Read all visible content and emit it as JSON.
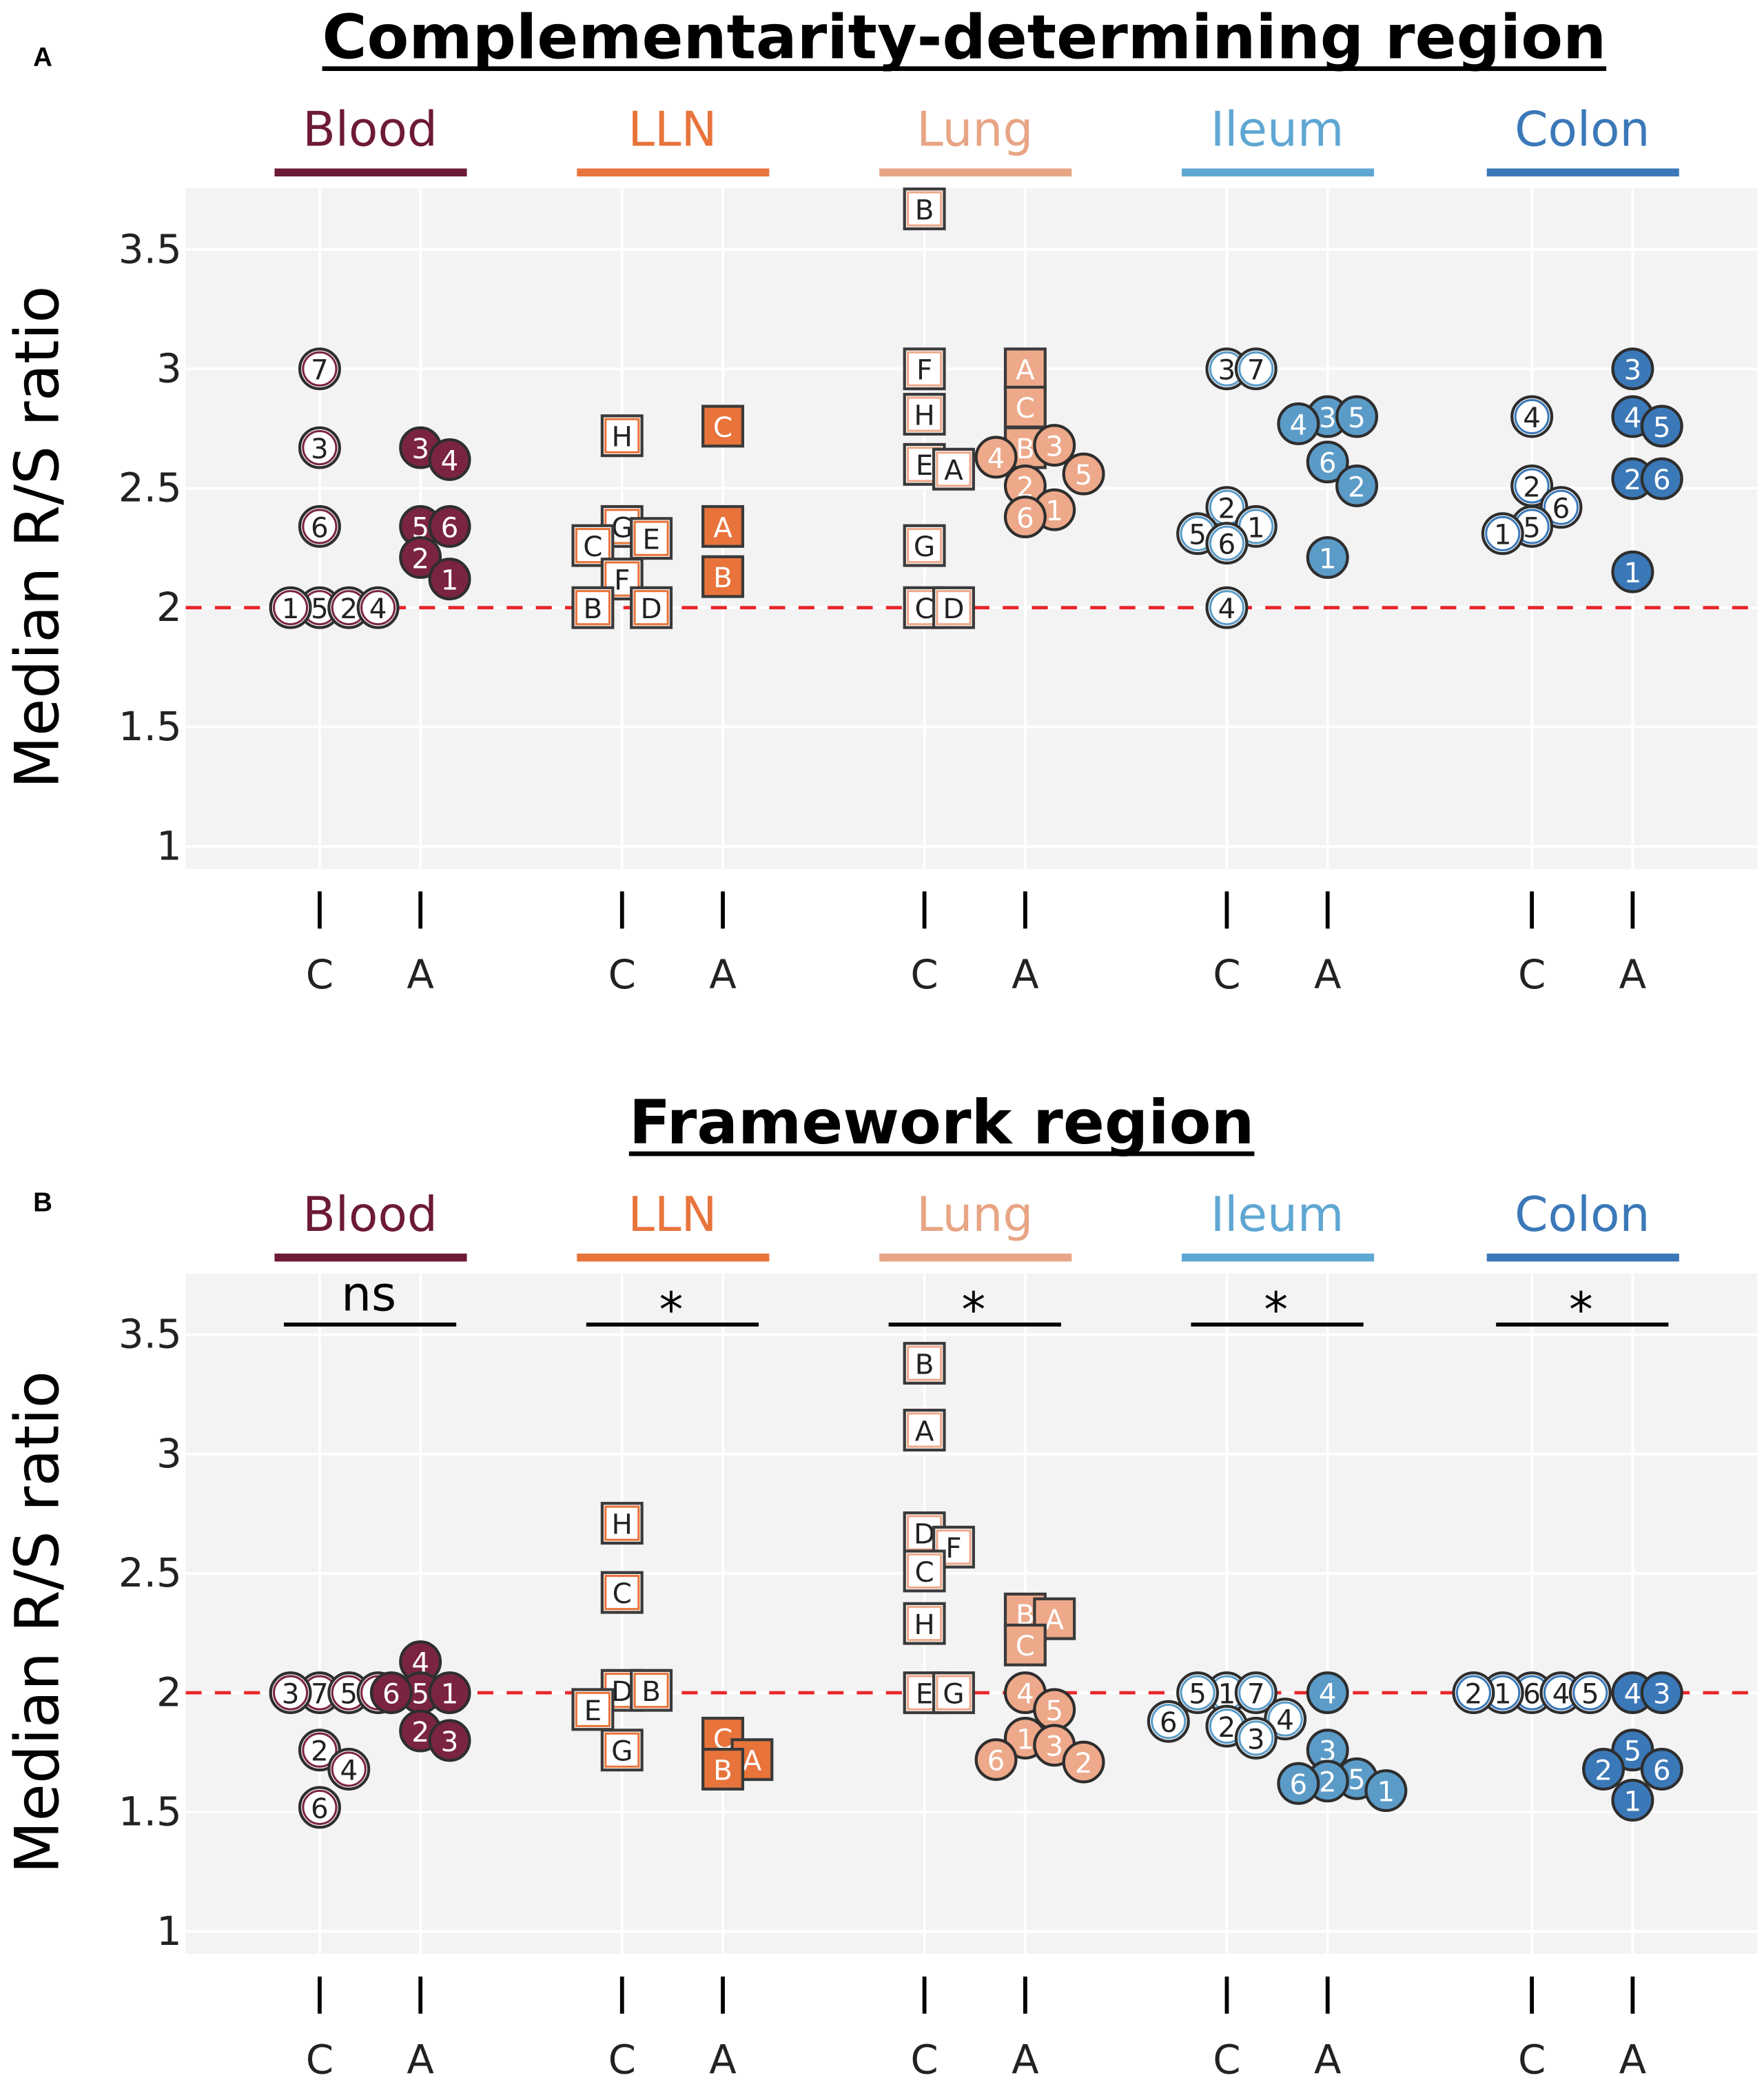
{
  "chart_data": [
    {
      "panel_label": "A",
      "type": "scatter",
      "title": "Complementarity-determining region",
      "ylabel": "Median R/S ratio",
      "ylim": [
        0.906,
        3.756
      ],
      "yticks": [
        1,
        1.5,
        2,
        2.5,
        3,
        3.5
      ],
      "ytick_labels": [
        "1",
        "1.5",
        "2",
        "2.5",
        "3",
        "3.5"
      ],
      "reference_line": 2,
      "reference_color": "#e8262a",
      "x_tick_labels": [
        "C",
        "A"
      ],
      "tissues": [
        {
          "name": "Blood",
          "color": "#6d1a36",
          "fill": "#7b2440",
          "significance": null,
          "groups": [
            {
              "condition": "C",
              "points": [
                {
                  "label": "7",
                  "value": 3.0
                },
                {
                  "label": "3",
                  "value": 2.67
                },
                {
                  "label": "6",
                  "value": 2.34
                },
                {
                  "label": "5",
                  "value": 2.0
                },
                {
                  "label": "2",
                  "value": 2.0
                },
                {
                  "label": "1",
                  "value": 2.0
                },
                {
                  "label": "4",
                  "value": 2.0
                }
              ]
            },
            {
              "condition": "A",
              "points": [
                {
                  "label": "3",
                  "value": 2.67
                },
                {
                  "label": "4",
                  "value": 2.62
                },
                {
                  "label": "5",
                  "value": 2.34
                },
                {
                  "label": "6",
                  "value": 2.34
                },
                {
                  "label": "2",
                  "value": 2.21
                },
                {
                  "label": "1",
                  "value": 2.12
                }
              ]
            }
          ]
        },
        {
          "name": "LLN",
          "color": "#e8743b",
          "fill": "#e8743b",
          "significance": null,
          "groups": [
            {
              "condition": "C",
              "points": [
                {
                  "label": "H",
                  "value": 2.72
                },
                {
                  "label": "G",
                  "value": 2.34
                },
                {
                  "label": "E",
                  "value": 2.29
                },
                {
                  "label": "C",
                  "value": 2.26
                },
                {
                  "label": "F",
                  "value": 2.12
                },
                {
                  "label": "D",
                  "value": 2.0
                },
                {
                  "label": "B",
                  "value": 2.0
                }
              ]
            },
            {
              "condition": "A",
              "points": [
                {
                  "label": "C",
                  "value": 2.76
                },
                {
                  "label": "A",
                  "value": 2.34
                },
                {
                  "label": "B",
                  "value": 2.13
                }
              ]
            }
          ]
        },
        {
          "name": "Lung",
          "color": "#e8a585",
          "fill": "#eda98a",
          "significance": null,
          "groups": [
            {
              "condition": "C",
              "points": [
                {
                  "label": "B",
                  "value": 3.67
                },
                {
                  "label": "F",
                  "value": 3.0
                },
                {
                  "label": "H",
                  "value": 2.81
                },
                {
                  "label": "E",
                  "value": 2.6
                },
                {
                  "label": "A",
                  "value": 2.58
                },
                {
                  "label": "G",
                  "value": 2.26
                },
                {
                  "label": "C",
                  "value": 2.0
                },
                {
                  "label": "D",
                  "value": 2.0
                }
              ]
            },
            {
              "condition": "A",
              "points": [
                {
                  "label": "A",
                  "value": 3.0
                },
                {
                  "label": "C",
                  "value": 2.84
                },
                {
                  "label": "B",
                  "value": 2.67
                },
                {
                  "label": "3",
                  "value": 2.68
                },
                {
                  "label": "4",
                  "value": 2.63
                },
                {
                  "label": "5",
                  "value": 2.56
                },
                {
                  "label": "2",
                  "value": 2.51
                },
                {
                  "label": "1",
                  "value": 2.41
                },
                {
                  "label": "6",
                  "value": 2.38
                }
              ]
            }
          ]
        },
        {
          "name": "Ileum",
          "color": "#5fa7d3",
          "fill": "#5b9bc8",
          "significance": null,
          "groups": [
            {
              "condition": "C",
              "points": [
                {
                  "label": "3",
                  "value": 3.0
                },
                {
                  "label": "7",
                  "value": 3.0
                },
                {
                  "label": "2",
                  "value": 2.42
                },
                {
                  "label": "1",
                  "value": 2.34
                },
                {
                  "label": "5",
                  "value": 2.31
                },
                {
                  "label": "6",
                  "value": 2.27
                },
                {
                  "label": "4",
                  "value": 2.0
                }
              ]
            },
            {
              "condition": "A",
              "points": [
                {
                  "label": "3",
                  "value": 2.8
                },
                {
                  "label": "5",
                  "value": 2.8
                },
                {
                  "label": "4",
                  "value": 2.77
                },
                {
                  "label": "6",
                  "value": 2.61
                },
                {
                  "label": "2",
                  "value": 2.51
                },
                {
                  "label": "1",
                  "value": 2.21
                }
              ]
            }
          ]
        },
        {
          "name": "Colon",
          "color": "#3b78b8",
          "fill": "#3b78b8",
          "significance": null,
          "groups": [
            {
              "condition": "C",
              "points": [
                {
                  "label": "4",
                  "value": 2.8
                },
                {
                  "label": "2",
                  "value": 2.51
                },
                {
                  "label": "6",
                  "value": 2.42
                },
                {
                  "label": "5",
                  "value": 2.34
                },
                {
                  "label": "1",
                  "value": 2.31
                }
              ]
            },
            {
              "condition": "A",
              "points": [
                {
                  "label": "3",
                  "value": 3.0
                },
                {
                  "label": "4",
                  "value": 2.8
                },
                {
                  "label": "5",
                  "value": 2.76
                },
                {
                  "label": "2",
                  "value": 2.54
                },
                {
                  "label": "6",
                  "value": 2.54
                },
                {
                  "label": "1",
                  "value": 2.15
                }
              ]
            }
          ]
        }
      ]
    },
    {
      "panel_label": "B",
      "type": "scatter",
      "title": "Framework region",
      "ylabel": "Median R/S ratio",
      "ylim": [
        0.906,
        3.756
      ],
      "yticks": [
        1,
        1.5,
        2,
        2.5,
        3,
        3.5
      ],
      "ytick_labels": [
        "1",
        "1.5",
        "2",
        "2.5",
        "3",
        "3.5"
      ],
      "reference_line": 2,
      "reference_color": "#e8262a",
      "x_tick_labels": [
        "C",
        "A"
      ],
      "tissues": [
        {
          "name": "Blood",
          "color": "#6d1a36",
          "fill": "#7b2440",
          "significance": "ns",
          "groups": [
            {
              "condition": "C",
              "points": [
                {
                  "label": "7",
                  "value": 2.0
                },
                {
                  "label": "5",
                  "value": 2.0
                },
                {
                  "label": "3",
                  "value": 2.0
                },
                {
                  "label": "1",
                  "value": 2.0
                },
                {
                  "label": "2",
                  "value": 1.76
                },
                {
                  "label": "4",
                  "value": 1.68
                },
                {
                  "label": "6",
                  "value": 1.52
                }
              ]
            },
            {
              "condition": "A",
              "points": [
                {
                  "label": "4",
                  "value": 2.13
                },
                {
                  "label": "5",
                  "value": 2.0
                },
                {
                  "label": "1",
                  "value": 2.0
                },
                {
                  "label": "6",
                  "value": 2.0
                },
                {
                  "label": "2",
                  "value": 1.84
                },
                {
                  "label": "3",
                  "value": 1.8
                }
              ]
            }
          ]
        },
        {
          "name": "LLN",
          "color": "#e8743b",
          "fill": "#e8743b",
          "significance": "*",
          "groups": [
            {
              "condition": "C",
              "points": [
                {
                  "label": "H",
                  "value": 2.71
                },
                {
                  "label": "C",
                  "value": 2.42
                },
                {
                  "label": "D",
                  "value": 2.01
                },
                {
                  "label": "B",
                  "value": 2.01
                },
                {
                  "label": "E",
                  "value": 1.93
                },
                {
                  "label": "G",
                  "value": 1.76
                }
              ]
            },
            {
              "condition": "A",
              "points": [
                {
                  "label": "C",
                  "value": 1.81
                },
                {
                  "label": "A",
                  "value": 1.72
                },
                {
                  "label": "B",
                  "value": 1.68
                }
              ]
            }
          ]
        },
        {
          "name": "Lung",
          "color": "#e8a585",
          "fill": "#eda98a",
          "significance": "*",
          "groups": [
            {
              "condition": "C",
              "points": [
                {
                  "label": "B",
                  "value": 3.38
                },
                {
                  "label": "A",
                  "value": 3.1
                },
                {
                  "label": "D",
                  "value": 2.67
                },
                {
                  "label": "F",
                  "value": 2.61
                },
                {
                  "label": "C",
                  "value": 2.51
                },
                {
                  "label": "H",
                  "value": 2.29
                },
                {
                  "label": "E",
                  "value": 2.0
                },
                {
                  "label": "G",
                  "value": 2.0
                }
              ]
            },
            {
              "condition": "A",
              "points": [
                {
                  "label": "B",
                  "value": 2.33
                },
                {
                  "label": "A",
                  "value": 2.31
                },
                {
                  "label": "C",
                  "value": 2.2
                },
                {
                  "label": "4",
                  "value": 2.0
                },
                {
                  "label": "5",
                  "value": 1.93
                },
                {
                  "label": "1",
                  "value": 1.81
                },
                {
                  "label": "3",
                  "value": 1.78
                },
                {
                  "label": "6",
                  "value": 1.72
                },
                {
                  "label": "2",
                  "value": 1.71
                }
              ]
            }
          ]
        },
        {
          "name": "Ileum",
          "color": "#5fa7d3",
          "fill": "#5b9bc8",
          "significance": "*",
          "groups": [
            {
              "condition": "C",
              "points": [
                {
                  "label": "1",
                  "value": 2.0
                },
                {
                  "label": "7",
                  "value": 2.0
                },
                {
                  "label": "5",
                  "value": 2.0
                },
                {
                  "label": "4",
                  "value": 1.89
                },
                {
                  "label": "6",
                  "value": 1.88
                },
                {
                  "label": "2",
                  "value": 1.86
                },
                {
                  "label": "3",
                  "value": 1.81
                }
              ]
            },
            {
              "condition": "A",
              "points": [
                {
                  "label": "4",
                  "value": 2.0
                },
                {
                  "label": "3",
                  "value": 1.76
                },
                {
                  "label": "5",
                  "value": 1.64
                },
                {
                  "label": "2",
                  "value": 1.63
                },
                {
                  "label": "6",
                  "value": 1.62
                },
                {
                  "label": "1",
                  "value": 1.59
                }
              ]
            }
          ]
        },
        {
          "name": "Colon",
          "color": "#3b78b8",
          "fill": "#3b78b8",
          "significance": "*",
          "groups": [
            {
              "condition": "C",
              "points": [
                {
                  "label": "6",
                  "value": 2.0
                },
                {
                  "label": "4",
                  "value": 2.0
                },
                {
                  "label": "1",
                  "value": 2.0
                },
                {
                  "label": "5",
                  "value": 2.0
                },
                {
                  "label": "2",
                  "value": 2.0
                }
              ]
            },
            {
              "condition": "A",
              "points": [
                {
                  "label": "4",
                  "value": 2.0
                },
                {
                  "label": "3",
                  "value": 2.0
                },
                {
                  "label": "5",
                  "value": 1.76
                },
                {
                  "label": "6",
                  "value": 1.68
                },
                {
                  "label": "2",
                  "value": 1.68
                },
                {
                  "label": "1",
                  "value": 1.55
                }
              ]
            }
          ]
        }
      ]
    }
  ]
}
